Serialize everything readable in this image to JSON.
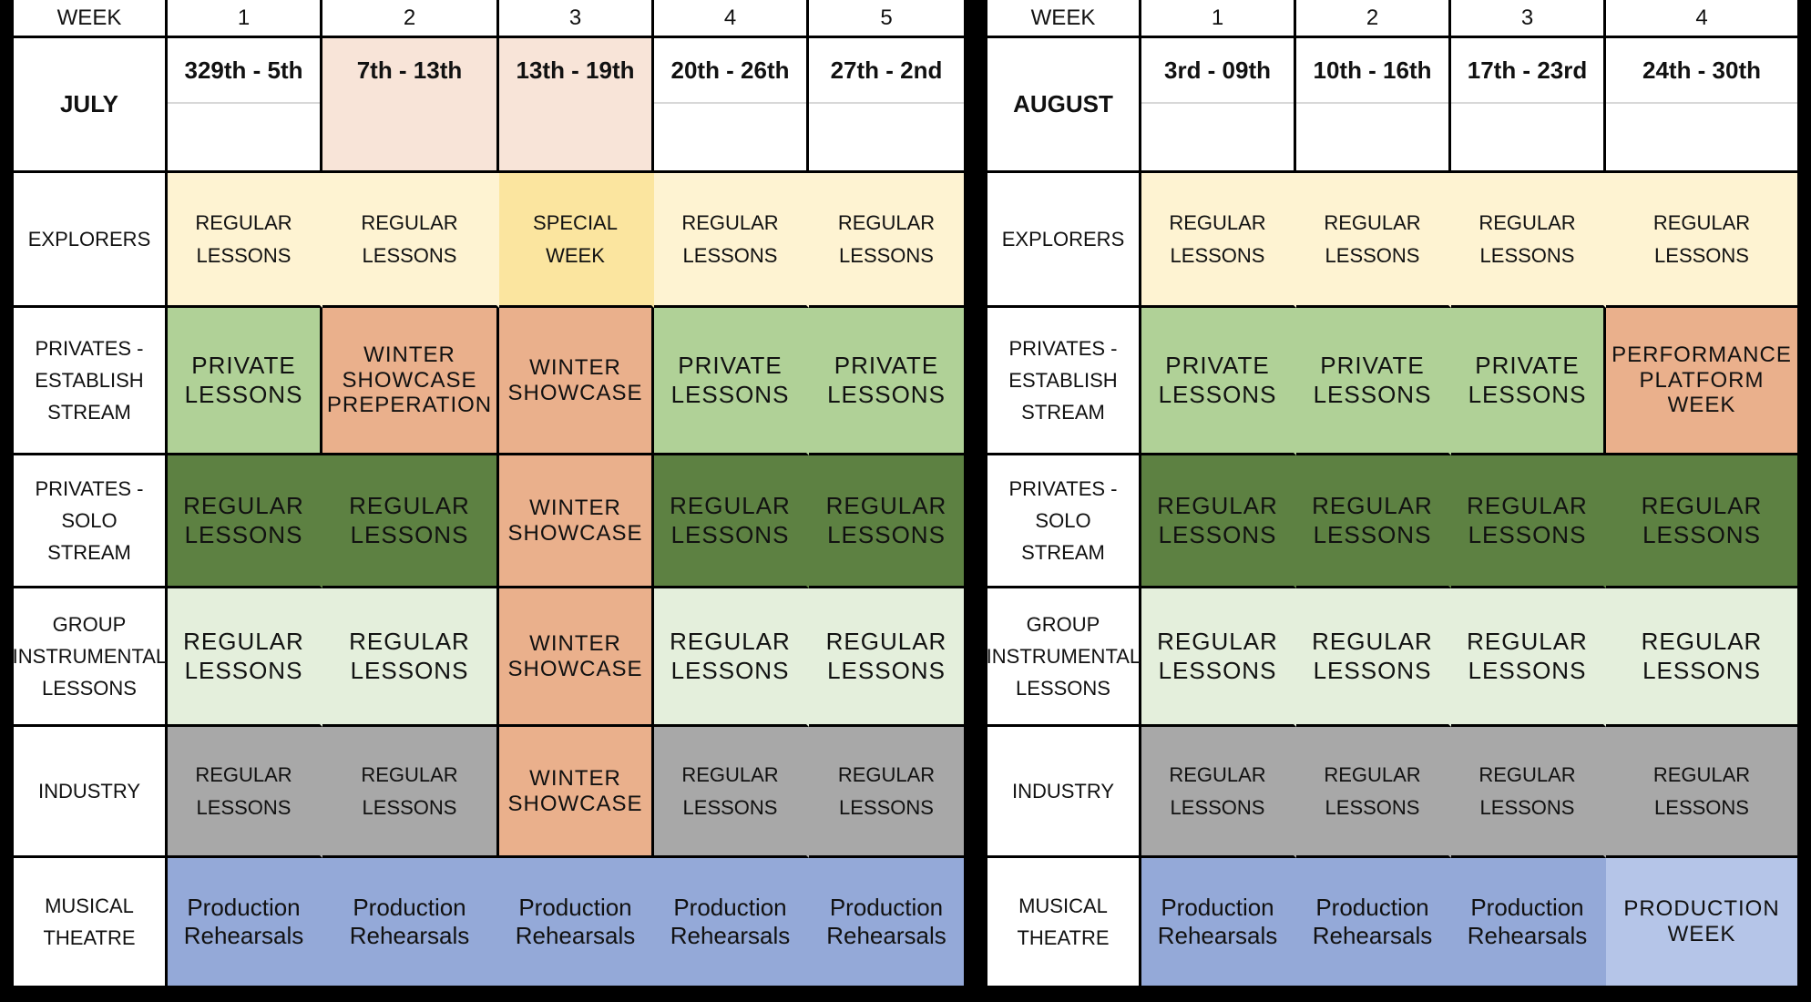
{
  "july": {
    "week_label": "WEEK",
    "weeks": [
      "1",
      "2",
      "3",
      "4",
      "5"
    ],
    "month": "JULY",
    "dates": [
      "329th - 5th",
      "7th - 13th",
      "13th - 19th",
      "20th - 26th",
      "27th - 2nd"
    ],
    "rows": [
      {
        "label": "EXPLORERS",
        "cells": [
          "REGULAR LESSONS",
          "REGULAR LESSONS",
          "SPECIAL WEEK",
          "REGULAR LESSONS",
          "REGULAR LESSONS"
        ]
      },
      {
        "label": "PRIVATES - ESTABLISH STREAM",
        "cells": [
          "PRIVATE LESSONS",
          "WINTER SHOWCASE PREPERATION",
          "WINTER SHOWCASE",
          "PRIVATE LESSONS",
          "PRIVATE LESSONS"
        ]
      },
      {
        "label": "PRIVATES - SOLO STREAM",
        "cells": [
          "REGULAR LESSONS",
          "REGULAR LESSONS",
          "WINTER SHOWCASE",
          "REGULAR LESSONS",
          "REGULAR LESSONS"
        ]
      },
      {
        "label": "GROUP INSTRUMENTAL LESSONS",
        "cells": [
          "REGULAR LESSONS",
          "REGULAR LESSONS",
          "WINTER SHOWCASE",
          "REGULAR LESSONS",
          "REGULAR LESSONS"
        ]
      },
      {
        "label": "INDUSTRY",
        "cells": [
          "REGULAR LESSONS",
          "REGULAR LESSONS",
          "WINTER SHOWCASE",
          "REGULAR LESSONS",
          "REGULAR LESSONS"
        ]
      },
      {
        "label": "MUSICAL THEATRE",
        "cells": [
          "Production Rehearsals",
          "Production Rehearsals",
          "Production Rehearsals",
          "Production Rehearsals",
          "Production Rehearsals"
        ]
      }
    ]
  },
  "august": {
    "week_label": "WEEK",
    "weeks": [
      "1",
      "2",
      "3",
      "4"
    ],
    "month": "AUGUST",
    "dates": [
      "3rd - 09th",
      "10th - 16th",
      "17th - 23rd",
      "24th - 30th"
    ],
    "rows": [
      {
        "label": "EXPLORERS",
        "cells": [
          "REGULAR LESSONS",
          "REGULAR LESSONS",
          "REGULAR LESSONS",
          "REGULAR LESSONS"
        ]
      },
      {
        "label": "PRIVATES - ESTABLISH STREAM",
        "cells": [
          "PRIVATE LESSONS",
          "PRIVATE LESSONS",
          "PRIVATE LESSONS",
          "PERFORMANCE PLATFORM WEEK"
        ]
      },
      {
        "label": "PRIVATES - SOLO STREAM",
        "cells": [
          "REGULAR LESSONS",
          "REGULAR LESSONS",
          "REGULAR LESSONS",
          "REGULAR LESSONS"
        ]
      },
      {
        "label": "GROUP INSTRUMENTAL LESSONS",
        "cells": [
          "REGULAR LESSONS",
          "REGULAR LESSONS",
          "REGULAR LESSONS",
          "REGULAR LESSONS"
        ]
      },
      {
        "label": "INDUSTRY",
        "cells": [
          "REGULAR LESSONS",
          "REGULAR LESSONS",
          "REGULAR LESSONS",
          "REGULAR LESSONS"
        ]
      },
      {
        "label": "MUSICAL THEATRE",
        "cells": [
          "Production Rehearsals",
          "Production Rehearsals",
          "Production Rehearsals",
          "PRODUCTION WEEK"
        ]
      }
    ]
  },
  "colors": {
    "explorers": "#fef3d2",
    "special_week": "#fbe59f",
    "private_lessons": "#b0d197",
    "showcase": "#eab08c",
    "solo_stream": "#5d8142",
    "group_lessons": "#e4efdc",
    "industry": "#a8a8a8",
    "musical_theatre": "#94a9d8",
    "production_week": "#b5c5e8",
    "date_highlight": "#f8e4d8"
  }
}
